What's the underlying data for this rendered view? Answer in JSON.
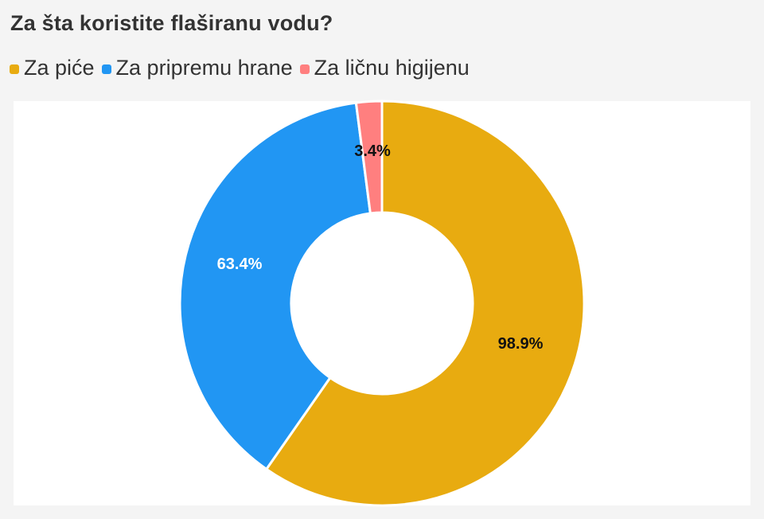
{
  "title": "Za šta koristite flaširanu vodu?",
  "legend": [
    {
      "label": "Za piće",
      "color": "#E8AB10"
    },
    {
      "label": "Za pripremu hrane",
      "color": "#2196F3"
    },
    {
      "label": "Za ličnu higijenu",
      "color": "#FF7F7F"
    }
  ],
  "labels": {
    "drinking": "98.9%",
    "cooking": "63.4%",
    "hygiene": "3.4%"
  },
  "chart_data": {
    "type": "pie",
    "subtype": "donut",
    "title": "Za šta koristite flaširanu vodu?",
    "categories": [
      "Za piće",
      "Za pripremu hrane",
      "Za ličnu higijenu"
    ],
    "values": [
      98.9,
      63.4,
      3.4
    ],
    "unit": "%",
    "colors": [
      "#E8AB10",
      "#2196F3",
      "#FF7F7F"
    ],
    "legend_position": "top",
    "data_labels": [
      "98.9%",
      "63.4%",
      "3.4%"
    ]
  }
}
